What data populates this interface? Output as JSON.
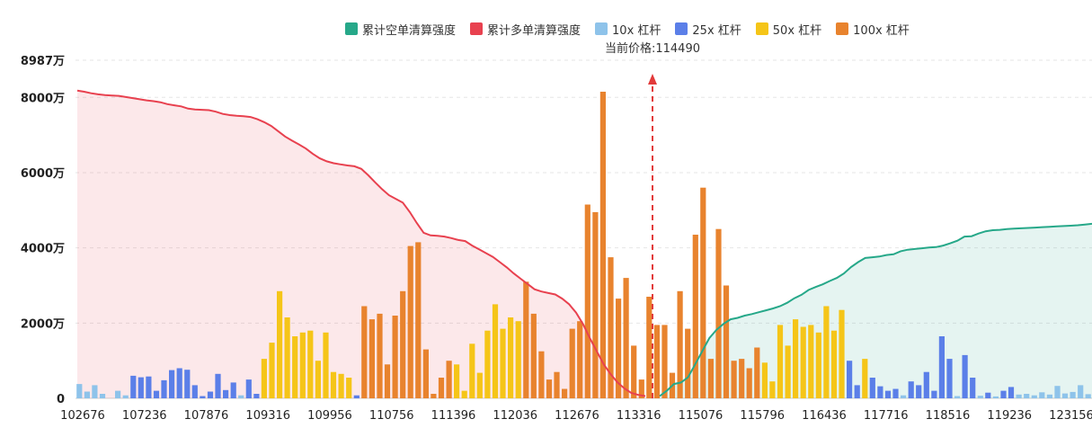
{
  "chart_data": {
    "type": "bar",
    "title": "",
    "xlabel": "",
    "ylabel": "",
    "ylim": [
      0,
      8987
    ],
    "y_unit": "万",
    "y_ticks": [
      {
        "value": 0,
        "label": "0"
      },
      {
        "value": 2000,
        "label": "2000万"
      },
      {
        "value": 4000,
        "label": "4000万"
      },
      {
        "value": 6000,
        "label": "6000万"
      },
      {
        "value": 8000,
        "label": "8000万"
      },
      {
        "value": 8987,
        "label": "8987万"
      }
    ],
    "x_range": [
      102676,
      124200
    ],
    "x_tick_labels": [
      "102676",
      "107236",
      "107876",
      "109316",
      "109956",
      "110756",
      "111396",
      "112036",
      "112676",
      "113316",
      "115076",
      "115796",
      "116436",
      "117716",
      "118516",
      "119236",
      "123156"
    ],
    "current_price": 114490,
    "current_price_label": "当前价格:114490",
    "legend": [
      {
        "name": "累计空单清算强度",
        "color": "#26a889"
      },
      {
        "name": "累计多单清算强度",
        "color": "#e8414f"
      },
      {
        "name": "10x 杠杆",
        "color": "#8ec3ea"
      },
      {
        "name": "25x 杠杆",
        "color": "#5b7fe8"
      },
      {
        "name": "50x 杠杆",
        "color": "#f5c518"
      },
      {
        "name": "100x 杠杆",
        "color": "#e8832e"
      }
    ],
    "cumulative_long": [
      8180,
      8150,
      8110,
      8080,
      8060,
      8050,
      8040,
      8010,
      7980,
      7950,
      7920,
      7900,
      7870,
      7820,
      7790,
      7760,
      7700,
      7680,
      7670,
      7660,
      7620,
      7560,
      7530,
      7510,
      7500,
      7480,
      7420,
      7340,
      7240,
      7100,
      6960,
      6850,
      6750,
      6640,
      6500,
      6380,
      6300,
      6250,
      6220,
      6190,
      6170,
      6100,
      5930,
      5740,
      5560,
      5400,
      5300,
      5200,
      4950,
      4660,
      4400,
      4330,
      4320,
      4300,
      4260,
      4210,
      4180,
      4060,
      3960,
      3860,
      3760,
      3620,
      3480,
      3320,
      3180,
      3040,
      2900,
      2840,
      2800,
      2760,
      2650,
      2500,
      2280,
      1980,
      1600,
      1250,
      900,
      640,
      420,
      260,
      140,
      90,
      60
    ],
    "cumulative_short": [
      60,
      200,
      380,
      420,
      560,
      900,
      1250,
      1600,
      1820,
      1980,
      2100,
      2140,
      2200,
      2240,
      2290,
      2340,
      2390,
      2450,
      2540,
      2660,
      2750,
      2880,
      2960,
      3030,
      3120,
      3200,
      3320,
      3490,
      3620,
      3730,
      3750,
      3770,
      3810,
      3830,
      3910,
      3950,
      3970,
      3990,
      4010,
      4020,
      4060,
      4120,
      4190,
      4300,
      4310,
      4380,
      4440,
      4470,
      4480,
      4500,
      4510,
      4520,
      4530,
      4540,
      4550,
      4560,
      4570,
      4580,
      4590,
      4600,
      4620,
      4640
    ],
    "bars": [
      {
        "x": 0,
        "lev": "10x",
        "v": 380
      },
      {
        "x": 1,
        "lev": "10x",
        "v": 180
      },
      {
        "x": 2,
        "lev": "10x",
        "v": 350
      },
      {
        "x": 3,
        "lev": "10x",
        "v": 120
      },
      {
        "x": 5,
        "lev": "10x",
        "v": 200
      },
      {
        "x": 6,
        "lev": "10x",
        "v": 80
      },
      {
        "x": 7,
        "lev": "25x",
        "v": 600
      },
      {
        "x": 8,
        "lev": "25x",
        "v": 560
      },
      {
        "x": 9,
        "lev": "25x",
        "v": 580
      },
      {
        "x": 10,
        "lev": "25x",
        "v": 200
      },
      {
        "x": 11,
        "lev": "25x",
        "v": 480
      },
      {
        "x": 12,
        "lev": "25x",
        "v": 750
      },
      {
        "x": 13,
        "lev": "25x",
        "v": 800
      },
      {
        "x": 14,
        "lev": "25x",
        "v": 760
      },
      {
        "x": 15,
        "lev": "25x",
        "v": 350
      },
      {
        "x": 16,
        "lev": "25x",
        "v": 60
      },
      {
        "x": 17,
        "lev": "25x",
        "v": 180
      },
      {
        "x": 18,
        "lev": "25x",
        "v": 650
      },
      {
        "x": 19,
        "lev": "25x",
        "v": 220
      },
      {
        "x": 20,
        "lev": "25x",
        "v": 420
      },
      {
        "x": 21,
        "lev": "10x",
        "v": 80
      },
      {
        "x": 22,
        "lev": "25x",
        "v": 500
      },
      {
        "x": 23,
        "lev": "25x",
        "v": 120
      },
      {
        "x": 24,
        "lev": "50x",
        "v": 1050
      },
      {
        "x": 25,
        "lev": "50x",
        "v": 1480
      },
      {
        "x": 26,
        "lev": "50x",
        "v": 2850
      },
      {
        "x": 27,
        "lev": "50x",
        "v": 2150
      },
      {
        "x": 28,
        "lev": "50x",
        "v": 1650
      },
      {
        "x": 29,
        "lev": "50x",
        "v": 1750
      },
      {
        "x": 30,
        "lev": "50x",
        "v": 1800
      },
      {
        "x": 31,
        "lev": "50x",
        "v": 1000
      },
      {
        "x": 32,
        "lev": "50x",
        "v": 1750
      },
      {
        "x": 33,
        "lev": "50x",
        "v": 700
      },
      {
        "x": 34,
        "lev": "50x",
        "v": 650
      },
      {
        "x": 35,
        "lev": "50x",
        "v": 550
      },
      {
        "x": 36,
        "lev": "25x",
        "v": 80
      },
      {
        "x": 37,
        "lev": "100x",
        "v": 2450
      },
      {
        "x": 38,
        "lev": "100x",
        "v": 2100
      },
      {
        "x": 39,
        "lev": "100x",
        "v": 2250
      },
      {
        "x": 40,
        "lev": "100x",
        "v": 900
      },
      {
        "x": 41,
        "lev": "100x",
        "v": 2200
      },
      {
        "x": 42,
        "lev": "100x",
        "v": 2850
      },
      {
        "x": 43,
        "lev": "100x",
        "v": 4050
      },
      {
        "x": 44,
        "lev": "100x",
        "v": 4150
      },
      {
        "x": 45,
        "lev": "100x",
        "v": 1300
      },
      {
        "x": 46,
        "lev": "100x",
        "v": 120
      },
      {
        "x": 47,
        "lev": "100x",
        "v": 550
      },
      {
        "x": 48,
        "lev": "100x",
        "v": 1000
      },
      {
        "x": 49,
        "lev": "50x",
        "v": 900
      },
      {
        "x": 50,
        "lev": "50x",
        "v": 200
      },
      {
        "x": 51,
        "lev": "50x",
        "v": 1450
      },
      {
        "x": 52,
        "lev": "50x",
        "v": 680
      },
      {
        "x": 53,
        "lev": "50x",
        "v": 1800
      },
      {
        "x": 54,
        "lev": "50x",
        "v": 2500
      },
      {
        "x": 55,
        "lev": "50x",
        "v": 1850
      },
      {
        "x": 56,
        "lev": "50x",
        "v": 2150
      },
      {
        "x": 57,
        "lev": "50x",
        "v": 2050
      },
      {
        "x": 58,
        "lev": "100x",
        "v": 3100
      },
      {
        "x": 59,
        "lev": "100x",
        "v": 2250
      },
      {
        "x": 60,
        "lev": "100x",
        "v": 1250
      },
      {
        "x": 61,
        "lev": "100x",
        "v": 500
      },
      {
        "x": 62,
        "lev": "100x",
        "v": 700
      },
      {
        "x": 63,
        "lev": "100x",
        "v": 250
      },
      {
        "x": 64,
        "lev": "100x",
        "v": 1850
      },
      {
        "x": 65,
        "lev": "100x",
        "v": 2050
      },
      {
        "x": 66,
        "lev": "100x",
        "v": 5150
      },
      {
        "x": 67,
        "lev": "100x",
        "v": 4950
      },
      {
        "x": 68,
        "lev": "100x",
        "v": 8150
      },
      {
        "x": 69,
        "lev": "100x",
        "v": 3750
      },
      {
        "x": 70,
        "lev": "100x",
        "v": 2650
      },
      {
        "x": 71,
        "lev": "100x",
        "v": 3200
      },
      {
        "x": 72,
        "lev": "100x",
        "v": 1400
      },
      {
        "x": 73,
        "lev": "100x",
        "v": 500
      },
      {
        "x": 74,
        "lev": "100x",
        "v": 2700
      },
      {
        "x": 75,
        "lev": "100x",
        "v": 1950
      },
      {
        "x": 76,
        "lev": "100x",
        "v": 1950
      },
      {
        "x": 77,
        "lev": "100x",
        "v": 680
      },
      {
        "x": 78,
        "lev": "100x",
        "v": 2850
      },
      {
        "x": 79,
        "lev": "100x",
        "v": 1850
      },
      {
        "x": 80,
        "lev": "100x",
        "v": 4350
      },
      {
        "x": 81,
        "lev": "100x",
        "v": 5600
      },
      {
        "x": 82,
        "lev": "100x",
        "v": 1050
      },
      {
        "x": 83,
        "lev": "100x",
        "v": 4500
      },
      {
        "x": 84,
        "lev": "100x",
        "v": 3000
      },
      {
        "x": 85,
        "lev": "100x",
        "v": 1000
      },
      {
        "x": 86,
        "lev": "100x",
        "v": 1050
      },
      {
        "x": 87,
        "lev": "100x",
        "v": 800
      },
      {
        "x": 88,
        "lev": "100x",
        "v": 1350
      },
      {
        "x": 89,
        "lev": "50x",
        "v": 950
      },
      {
        "x": 90,
        "lev": "50x",
        "v": 450
      },
      {
        "x": 91,
        "lev": "50x",
        "v": 1950
      },
      {
        "x": 92,
        "lev": "50x",
        "v": 1400
      },
      {
        "x": 93,
        "lev": "50x",
        "v": 2100
      },
      {
        "x": 94,
        "lev": "50x",
        "v": 1900
      },
      {
        "x": 95,
        "lev": "50x",
        "v": 1950
      },
      {
        "x": 96,
        "lev": "50x",
        "v": 1750
      },
      {
        "x": 97,
        "lev": "50x",
        "v": 2450
      },
      {
        "x": 98,
        "lev": "50x",
        "v": 1800
      },
      {
        "x": 99,
        "lev": "50x",
        "v": 2350
      },
      {
        "x": 100,
        "lev": "25x",
        "v": 1000
      },
      {
        "x": 101,
        "lev": "25x",
        "v": 350
      },
      {
        "x": 102,
        "lev": "50x",
        "v": 1050
      },
      {
        "x": 103,
        "lev": "25x",
        "v": 550
      },
      {
        "x": 104,
        "lev": "25x",
        "v": 320
      },
      {
        "x": 105,
        "lev": "25x",
        "v": 200
      },
      {
        "x": 106,
        "lev": "25x",
        "v": 250
      },
      {
        "x": 107,
        "lev": "10x",
        "v": 80
      },
      {
        "x": 108,
        "lev": "25x",
        "v": 450
      },
      {
        "x": 109,
        "lev": "25x",
        "v": 350
      },
      {
        "x": 110,
        "lev": "25x",
        "v": 700
      },
      {
        "x": 111,
        "lev": "25x",
        "v": 200
      },
      {
        "x": 112,
        "lev": "25x",
        "v": 1650
      },
      {
        "x": 113,
        "lev": "25x",
        "v": 1050
      },
      {
        "x": 114,
        "lev": "10x",
        "v": 60
      },
      {
        "x": 115,
        "lev": "25x",
        "v": 1150
      },
      {
        "x": 116,
        "lev": "25x",
        "v": 550
      },
      {
        "x": 117,
        "lev": "10x",
        "v": 70
      },
      {
        "x": 118,
        "lev": "25x",
        "v": 150
      },
      {
        "x": 119,
        "lev": "10x",
        "v": 50
      },
      {
        "x": 120,
        "lev": "25x",
        "v": 200
      },
      {
        "x": 121,
        "lev": "25x",
        "v": 300
      },
      {
        "x": 122,
        "lev": "10x",
        "v": 100
      },
      {
        "x": 123,
        "lev": "10x",
        "v": 120
      },
      {
        "x": 124,
        "lev": "10x",
        "v": 80
      },
      {
        "x": 125,
        "lev": "10x",
        "v": 160
      },
      {
        "x": 126,
        "lev": "10x",
        "v": 100
      },
      {
        "x": 127,
        "lev": "10x",
        "v": 330
      },
      {
        "x": 128,
        "lev": "10x",
        "v": 130
      },
      {
        "x": 129,
        "lev": "10x",
        "v": 170
      },
      {
        "x": 130,
        "lev": "10x",
        "v": 350
      },
      {
        "x": 131,
        "lev": "10x",
        "v": 110
      }
    ]
  }
}
